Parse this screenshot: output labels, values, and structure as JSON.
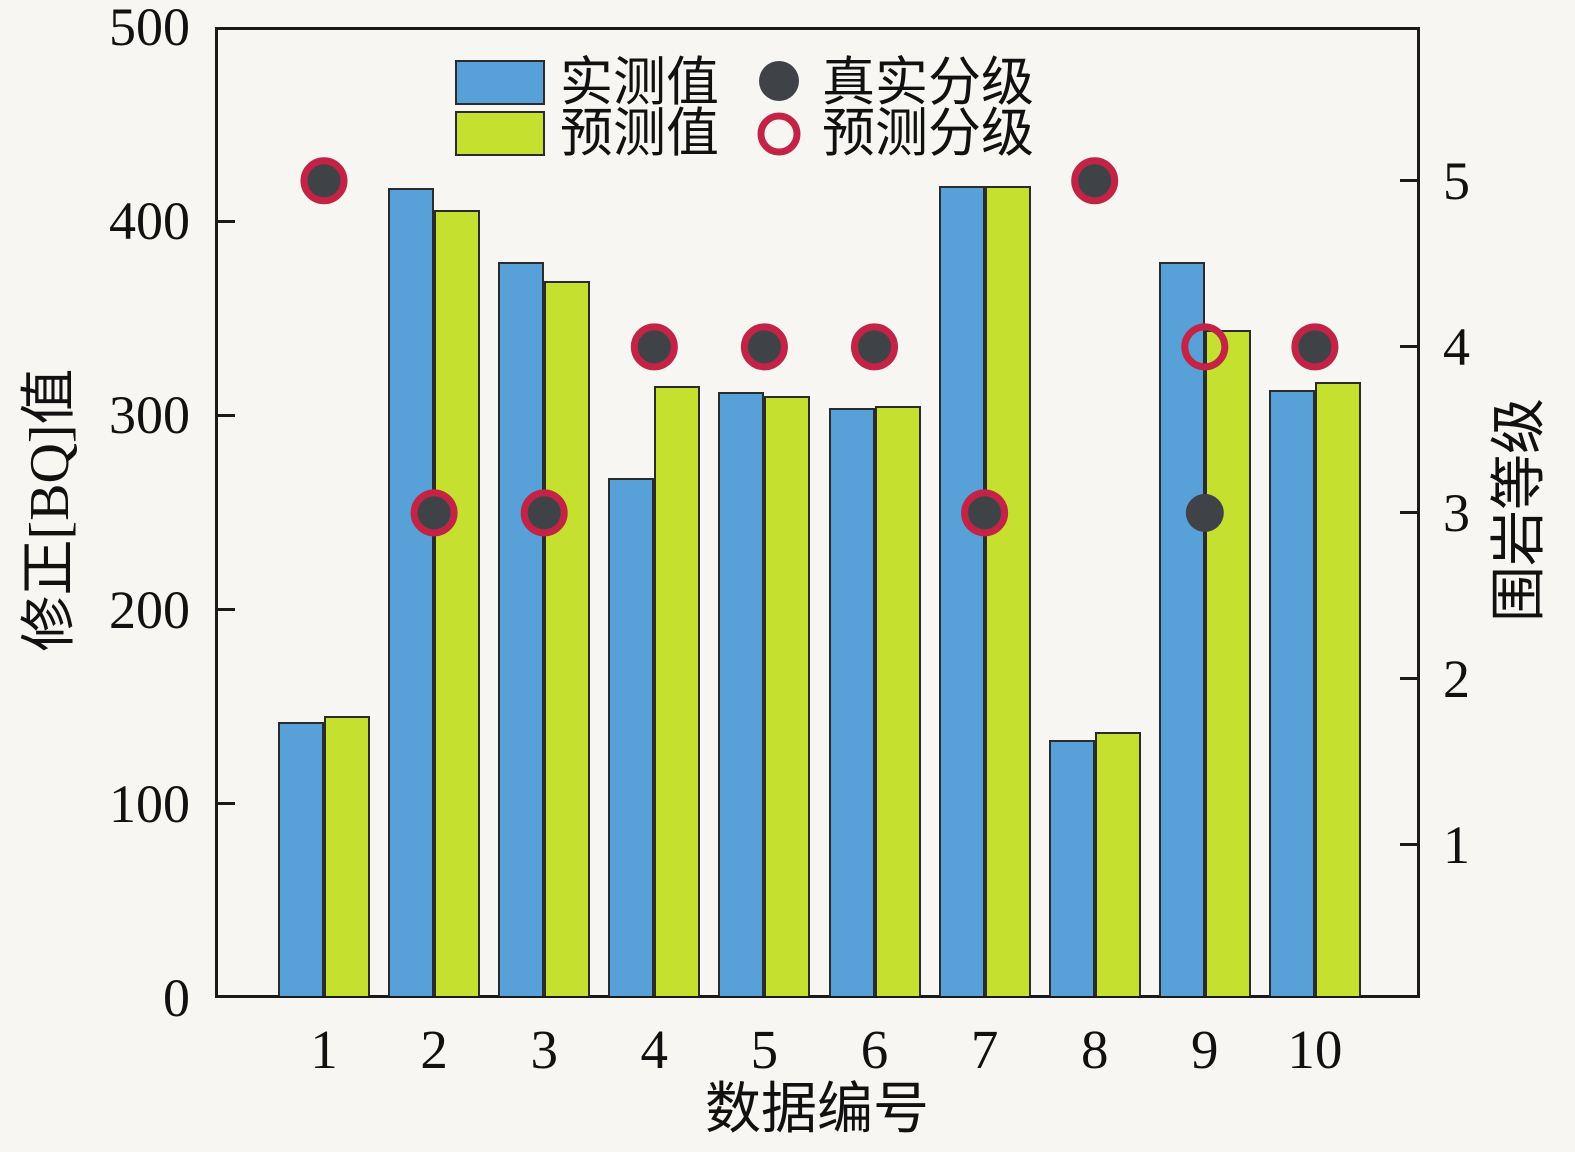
{
  "figure": {
    "background": "#f7f6f2",
    "xlabel": "数据编号",
    "ylabel_left": "修正[BQ]值",
    "ylabel_right": "围岩等级"
  },
  "legend": {
    "series": [
      {
        "label": "实测值",
        "swatch_color": "#57a0d8"
      },
      {
        "label": "预测值",
        "swatch_color": "#c6e02f"
      }
    ],
    "markers": [
      {
        "label": "真实分级",
        "type": "filled-circle",
        "color": "#3f4347"
      },
      {
        "label": "预测分级",
        "type": "open-circle",
        "color": "#c32345"
      }
    ]
  },
  "chart_data": {
    "type": "bar",
    "title": "",
    "xlabel": "数据编号",
    "ylabel_left": "修正[BQ]值",
    "ylabel_right": "围岩等级",
    "categories": [
      "1",
      "2",
      "3",
      "4",
      "5",
      "6",
      "7",
      "8",
      "9",
      "10"
    ],
    "series": [
      {
        "name": "实测值",
        "axis": "left",
        "color": "#57a0d8",
        "values": [
          142,
          417,
          379,
          268,
          312,
          304,
          418,
          133,
          379,
          313
        ]
      },
      {
        "name": "预测值",
        "axis": "left",
        "color": "#c6e02f",
        "values": [
          145,
          406,
          369,
          315,
          310,
          305,
          418,
          137,
          344,
          317
        ]
      }
    ],
    "scatter_series": [
      {
        "name": "真实分级",
        "axis": "right",
        "marker": "filled-circle",
        "color": "#3f4347",
        "values": [
          5,
          3,
          3,
          4,
          4,
          4,
          3,
          5,
          3,
          4
        ]
      },
      {
        "name": "预测分级",
        "axis": "right",
        "marker": "open-circle",
        "color": "#c32345",
        "values": [
          5,
          3,
          3,
          4,
          4,
          4,
          3,
          5,
          4,
          4
        ]
      }
    ],
    "left_axis": {
      "min": 0,
      "max": 500,
      "ticks": [
        0,
        100,
        200,
        300,
        400,
        500
      ]
    },
    "right_axis": {
      "ticks": [
        1,
        2,
        3,
        4,
        5
      ],
      "grade1_equiv_bq": 78.8,
      "grade_step_bq": 85.5
    },
    "grid": false,
    "legend_position": "upper-center",
    "bar_edge_color": "#2b2b2b",
    "spine_color": "#1a1a1a"
  }
}
